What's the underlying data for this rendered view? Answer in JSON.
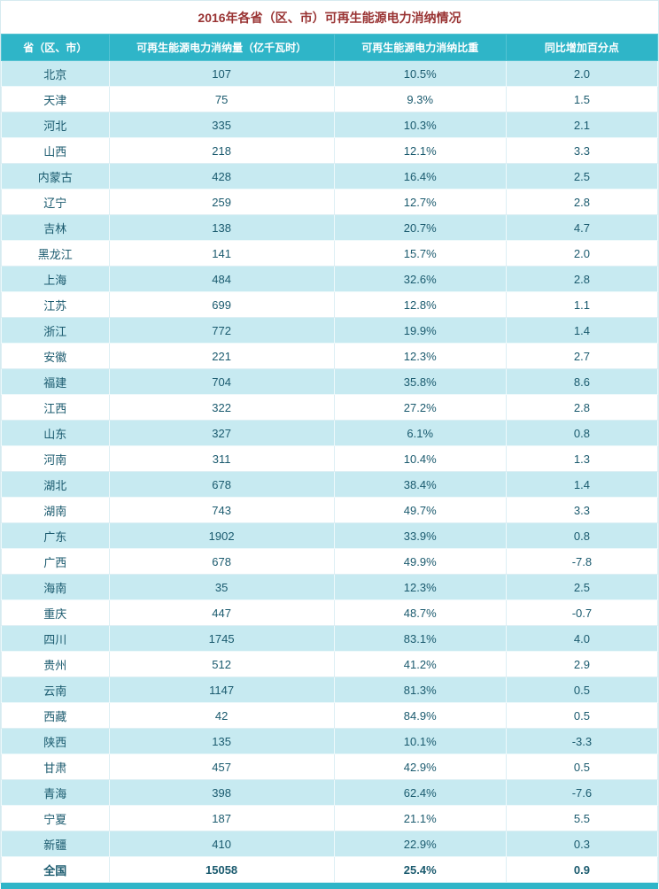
{
  "colors": {
    "header_bg": "#2fb5c8",
    "stripe_bg": "#c7eaf1",
    "title_color": "#993333",
    "cell_text": "#1a5a6e",
    "header_text": "#ffffff"
  },
  "chart_data": {
    "type": "table",
    "title": "2016年各省（区、市）可再生能源电力消纳情况",
    "columns": [
      "省（区、市）",
      "可再生能源电力消纳量（亿千瓦时）",
      "可再生能源电力消纳比重",
      "同比增加百分点"
    ],
    "rows": [
      [
        "北京",
        "107",
        "10.5%",
        "2.0"
      ],
      [
        "天津",
        "75",
        "9.3%",
        "1.5"
      ],
      [
        "河北",
        "335",
        "10.3%",
        "2.1"
      ],
      [
        "山西",
        "218",
        "12.1%",
        "3.3"
      ],
      [
        "内蒙古",
        "428",
        "16.4%",
        "2.5"
      ],
      [
        "辽宁",
        "259",
        "12.7%",
        "2.8"
      ],
      [
        "吉林",
        "138",
        "20.7%",
        "4.7"
      ],
      [
        "黑龙江",
        "141",
        "15.7%",
        "2.0"
      ],
      [
        "上海",
        "484",
        "32.6%",
        "2.8"
      ],
      [
        "江苏",
        "699",
        "12.8%",
        "1.1"
      ],
      [
        "浙江",
        "772",
        "19.9%",
        "1.4"
      ],
      [
        "安徽",
        "221",
        "12.3%",
        "2.7"
      ],
      [
        "福建",
        "704",
        "35.8%",
        "8.6"
      ],
      [
        "江西",
        "322",
        "27.2%",
        "2.8"
      ],
      [
        "山东",
        "327",
        "6.1%",
        "0.8"
      ],
      [
        "河南",
        "311",
        "10.4%",
        "1.3"
      ],
      [
        "湖北",
        "678",
        "38.4%",
        "1.4"
      ],
      [
        "湖南",
        "743",
        "49.7%",
        "3.3"
      ],
      [
        "广东",
        "1902",
        "33.9%",
        "0.8"
      ],
      [
        "广西",
        "678",
        "49.9%",
        "-7.8"
      ],
      [
        "海南",
        "35",
        "12.3%",
        "2.5"
      ],
      [
        "重庆",
        "447",
        "48.7%",
        "-0.7"
      ],
      [
        "四川",
        "1745",
        "83.1%",
        "4.0"
      ],
      [
        "贵州",
        "512",
        "41.2%",
        "2.9"
      ],
      [
        "云南",
        "1147",
        "81.3%",
        "0.5"
      ],
      [
        "西藏",
        "42",
        "84.9%",
        "0.5"
      ],
      [
        "陕西",
        "135",
        "10.1%",
        "-3.3"
      ],
      [
        "甘肃",
        "457",
        "42.9%",
        "0.5"
      ],
      [
        "青海",
        "398",
        "62.4%",
        "-7.6"
      ],
      [
        "宁夏",
        "187",
        "21.1%",
        "5.5"
      ],
      [
        "新疆",
        "410",
        "22.9%",
        "0.3"
      ]
    ],
    "total_row": [
      "全国",
      "15058",
      "25.4%",
      "0.9"
    ]
  }
}
